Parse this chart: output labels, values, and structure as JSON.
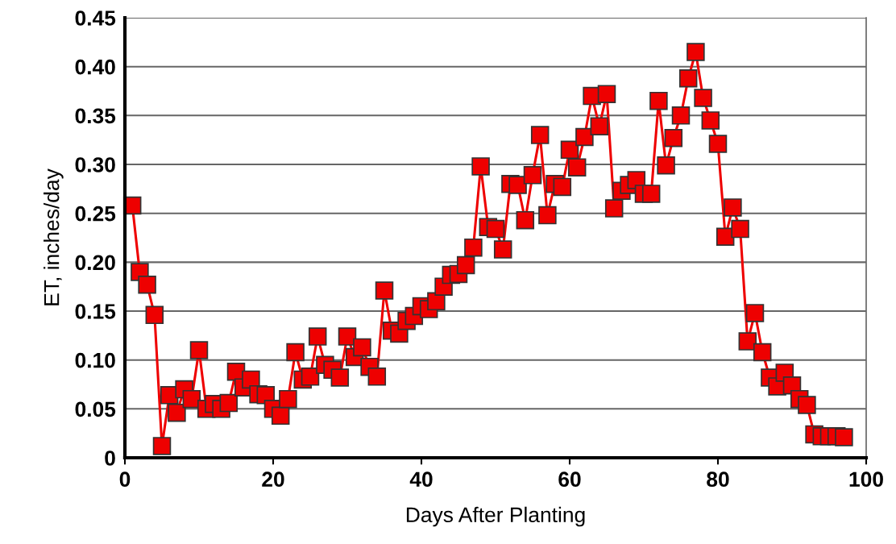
{
  "chart_data": {
    "type": "line",
    "xlabel": "Days After Planting",
    "ylabel": "ET, inches/day",
    "x": [
      1,
      2,
      3,
      4,
      5,
      6,
      7,
      8,
      9,
      10,
      11,
      12,
      13,
      14,
      15,
      16,
      17,
      18,
      19,
      20,
      21,
      22,
      23,
      24,
      25,
      26,
      27,
      28,
      29,
      30,
      31,
      32,
      33,
      34,
      35,
      36,
      37,
      38,
      39,
      40,
      41,
      42,
      43,
      44,
      45,
      46,
      47,
      48,
      49,
      50,
      51,
      52,
      53,
      54,
      55,
      56,
      57,
      58,
      59,
      60,
      61,
      62,
      63,
      64,
      65,
      66,
      67,
      68,
      69,
      70,
      71,
      72,
      73,
      74,
      75,
      76,
      77,
      78,
      79,
      80,
      81,
      82,
      83,
      84,
      85,
      86,
      87,
      88,
      89,
      90,
      91,
      92,
      93,
      94,
      95,
      96,
      97
    ],
    "series": [
      {
        "color": "#ee0000",
        "values": [
          0.258,
          0.19,
          0.177,
          0.146,
          0.012,
          0.064,
          0.046,
          0.07,
          0.06,
          0.11,
          0.05,
          0.055,
          0.05,
          0.056,
          0.088,
          0.072,
          0.08,
          0.065,
          0.064,
          0.05,
          0.043,
          0.06,
          0.108,
          0.08,
          0.083,
          0.124,
          0.095,
          0.09,
          0.082,
          0.124,
          0.103,
          0.113,
          0.093,
          0.083,
          0.171,
          0.13,
          0.127,
          0.14,
          0.145,
          0.155,
          0.152,
          0.16,
          0.175,
          0.187,
          0.188,
          0.197,
          0.215,
          0.298,
          0.236,
          0.234,
          0.213,
          0.28,
          0.279,
          0.243,
          0.289,
          0.33,
          0.248,
          0.28,
          0.277,
          0.315,
          0.297,
          0.328,
          0.37,
          0.339,
          0.372,
          0.255,
          0.273,
          0.279,
          0.284,
          0.27,
          0.27,
          0.365,
          0.299,
          0.327,
          0.35,
          0.388,
          0.415,
          0.368,
          0.345,
          0.321,
          0.226,
          0.256,
          0.234,
          0.119,
          0.148,
          0.108,
          0.082,
          0.073,
          0.087,
          0.074,
          0.06,
          0.054,
          0.024,
          0.022,
          0.022,
          0.022,
          0.021
        ]
      }
    ],
    "xlim": [
      0,
      100
    ],
    "xticks": [
      0,
      20,
      40,
      60,
      80,
      100
    ],
    "ylim": [
      0,
      0.45
    ],
    "yticks": [
      0,
      {
        "value": 0.05,
        "label": "0.05"
      },
      {
        "value": 0.1,
        "label": "0.10"
      },
      {
        "value": 0.15,
        "label": "0.15"
      },
      {
        "value": 0.2,
        "label": "0.20"
      },
      {
        "value": 0.25,
        "label": "0.25"
      },
      {
        "value": 0.3,
        "label": "0.30"
      },
      {
        "value": 0.35,
        "label": "0.35"
      },
      {
        "value": 0.4,
        "label": "0.40"
      },
      {
        "value": 0.45,
        "label": "0.45"
      }
    ],
    "grid": "y",
    "marker": "square",
    "line_style": "solid"
  }
}
